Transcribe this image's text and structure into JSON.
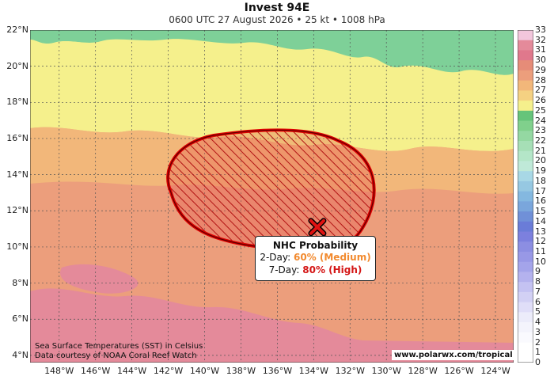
{
  "title": "Invest 94E",
  "subtitle": "0600 UTC 27 August 2026 • 25 kt • 1008 hPa",
  "map": {
    "lat_labels": [
      "22°N",
      "20°N",
      "18°N",
      "16°N",
      "14°N",
      "12°N",
      "10°N",
      "8°N",
      "6°N",
      "4°N"
    ],
    "lon_labels": [
      "148°W",
      "146°W",
      "144°W",
      "142°W",
      "140°W",
      "138°W",
      "136°W",
      "134°W",
      "132°W",
      "130°W",
      "128°W",
      "126°W",
      "124°W"
    ],
    "lat_range": [
      3.6,
      22.0
    ],
    "lon_range": [
      -149.6,
      -123.0
    ],
    "center": {
      "lat": 11.1,
      "lon": -133.8,
      "marker": "x-mark"
    },
    "outline": {
      "lat_range": [
        9.9,
        16.0
      ],
      "lon_range": [
        -142.7,
        -131.8
      ],
      "fill": "hatched-red"
    }
  },
  "colorbar": {
    "labels": [
      "33",
      "32",
      "31",
      "30",
      "29",
      "28",
      "27",
      "26",
      "25",
      "24",
      "23",
      "22",
      "21",
      "20",
      "19",
      "18",
      "17",
      "16",
      "15",
      "14",
      "13",
      "12",
      "11",
      "10",
      "9",
      "8",
      "7",
      "6",
      "5",
      "4",
      "3",
      "2",
      "1",
      "0"
    ],
    "colors": [
      "#f2c6dc",
      "#e48a9a",
      "#e0788c",
      "#e68c78",
      "#ec9e7c",
      "#f2b77a",
      "#f5d182",
      "#f5f08c",
      "#66c47a",
      "#80d08c",
      "#94d8a2",
      "#a6dfb6",
      "#b4e6c8",
      "#bfe9d8",
      "#a8d8e6",
      "#96c8e2",
      "#84b8e0",
      "#7aa6dc",
      "#7090d8",
      "#6a7cd8",
      "#7c80de",
      "#8c8ee2",
      "#9898e6",
      "#a4a4ea",
      "#b4b2ee",
      "#c4c2f2",
      "#d2d0f4",
      "#e0def8",
      "#ececfa",
      "#f4f4fc",
      "#fafafe",
      "#ffffff",
      "#ffffff"
    ]
  },
  "sst_colors": {
    "warm_hi": "#e48a9a",
    "warm": "#ec9e7c",
    "mid": "#f2b77a",
    "cool": "#f5d182",
    "cooler": "#f5f08c",
    "green": "#7ed098"
  },
  "info": {
    "heading": "NHC Probability",
    "two_day_label": "2-Day:",
    "two_day_value": "60% (Medium)",
    "seven_day_label": "7-Day:",
    "seven_day_value": "80% (High)"
  },
  "note_line1": "Sea Surface Temperatures (SST) in Celsius",
  "note_line2": "Data courtesy of NOAA Coral Reef Watch",
  "credit": "www.polarwx.com/tropical"
}
